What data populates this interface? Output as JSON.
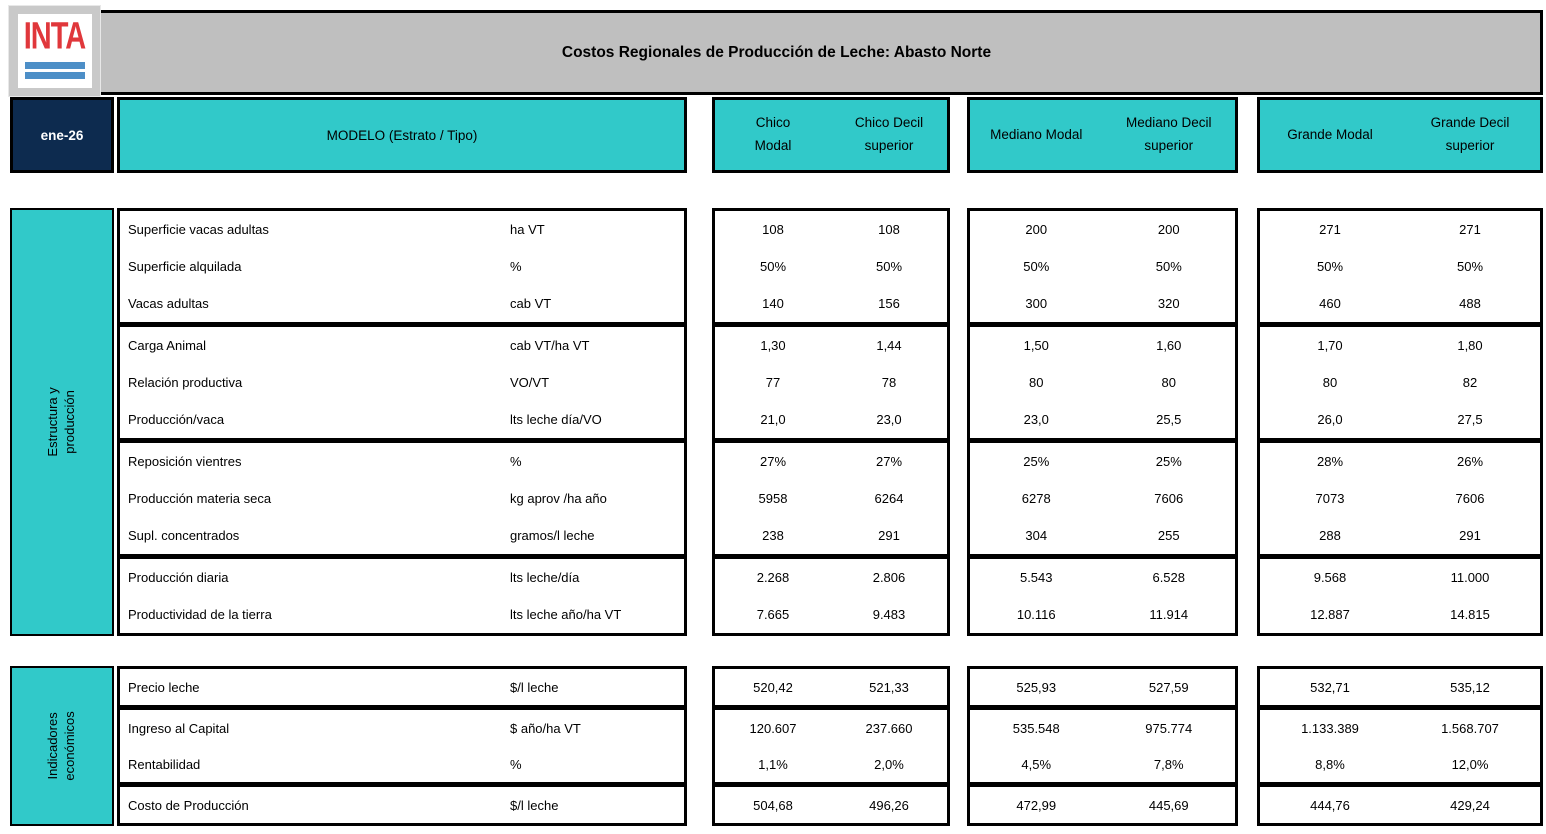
{
  "colors": {
    "teal": "#31c9c9",
    "navy": "#0d2b4f",
    "titlebar_gray": "#bfbfbf",
    "logo_red": "#e0373b",
    "logo_blue": "#4d8fc7"
  },
  "logo": {
    "text": "INTA"
  },
  "title": "Costos Regionales de Producción de Leche: Abasto Norte",
  "date_label": "ene-26",
  "modelo_label": "MODELO (Estrato / Tipo)",
  "column_groups": [
    {
      "col1": "Chico\nModal",
      "col2": "Chico Decil\nsuperior"
    },
    {
      "col1": "Mediano Modal",
      "col2": "Mediano Decil\nsuperior"
    },
    {
      "col1": "Grande Modal",
      "col2": "Grande Decil\nsuperior"
    }
  ],
  "sections": [
    {
      "name": "Estructura y producción",
      "rows": [
        {
          "label": "Superficie vacas adultas",
          "unit": "ha VT",
          "values": [
            "108",
            "108",
            "200",
            "200",
            "271",
            "271"
          ]
        },
        {
          "label": "Superficie alquilada",
          "unit": "%",
          "values": [
            "50%",
            "50%",
            "50%",
            "50%",
            "50%",
            "50%"
          ]
        },
        {
          "label": "Vacas adultas",
          "unit": "cab VT",
          "values": [
            "140",
            "156",
            "300",
            "320",
            "460",
            "488"
          ]
        },
        {
          "label": "Carga Animal",
          "unit": "cab VT/ha VT",
          "values": [
            "1,30",
            "1,44",
            "1,50",
            "1,60",
            "1,70",
            "1,80"
          ]
        },
        {
          "label": "Relación productiva",
          "unit": "VO/VT",
          "values": [
            "77",
            "78",
            "80",
            "80",
            "80",
            "82"
          ]
        },
        {
          "label": "Producción/vaca",
          "unit": "lts leche día/VO",
          "values": [
            "21,0",
            "23,0",
            "23,0",
            "25,5",
            "26,0",
            "27,5"
          ]
        },
        {
          "label": "Reposición vientres",
          "unit": "%",
          "values": [
            "27%",
            "27%",
            "25%",
            "25%",
            "28%",
            "26%"
          ]
        },
        {
          "label": "Producción materia seca",
          "unit": "kg aprov /ha año",
          "values": [
            "5958",
            "6264",
            "6278",
            "7606",
            "7073",
            "7606"
          ]
        },
        {
          "label": "Supl. concentrados",
          "unit": "gramos/l leche",
          "values": [
            "238",
            "291",
            "304",
            "255",
            "288",
            "291"
          ]
        },
        {
          "label": "Producción diaria",
          "unit": "lts leche/día",
          "values": [
            "2.268",
            "2.806",
            "5.543",
            "6.528",
            "9.568",
            "11.000"
          ]
        },
        {
          "label": "Productividad de la tierra",
          "unit": "lts leche año/ha VT",
          "values": [
            "7.665",
            "9.483",
            "10.116",
            "11.914",
            "12.887",
            "14.815"
          ]
        }
      ]
    },
    {
      "name": "Indicadores\neconómicos",
      "rows": [
        {
          "label": "Precio leche",
          "unit": "$/l leche",
          "values": [
            "520,42",
            "521,33",
            "525,93",
            "527,59",
            "532,71",
            "535,12"
          ]
        },
        {
          "label": "Ingreso al Capital",
          "unit": "$ año/ha VT",
          "values": [
            "120.607",
            "237.660",
            "535.548",
            "975.774",
            "1.133.389",
            "1.568.707"
          ]
        },
        {
          "label": "Rentabilidad",
          "unit": "%",
          "values": [
            "1,1%",
            "2,0%",
            "4,5%",
            "7,8%",
            "8,8%",
            "12,0%"
          ]
        },
        {
          "label": "Costo de Producción",
          "unit": "$/l leche",
          "values": [
            "504,68",
            "496,26",
            "472,99",
            "445,69",
            "444,76",
            "429,24"
          ]
        }
      ]
    }
  ]
}
